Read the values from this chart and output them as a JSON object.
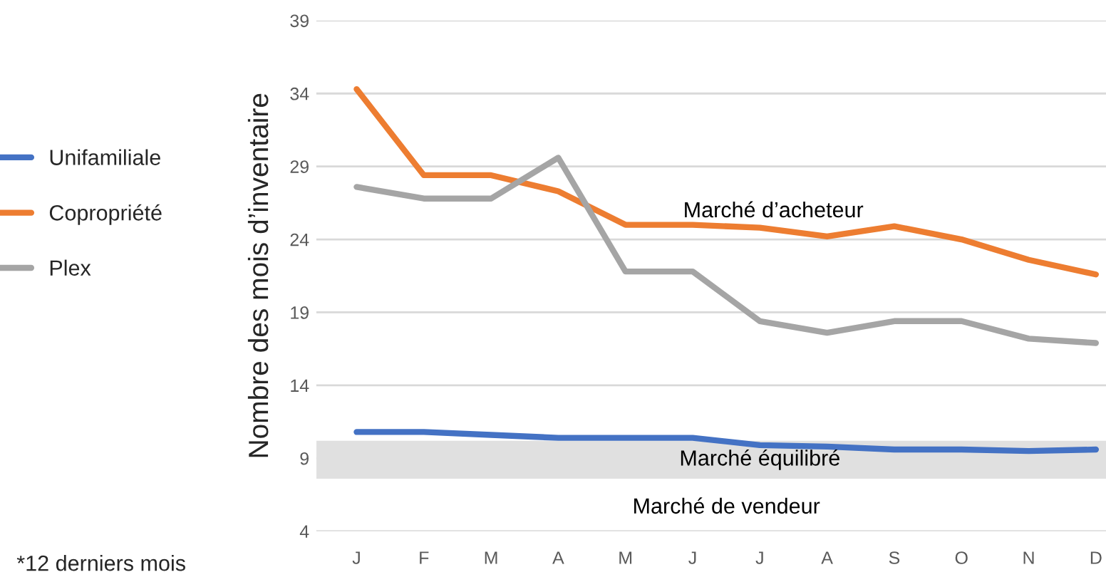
{
  "chart_data": {
    "type": "line",
    "ylabel": "Nombre des mois d’inventaire",
    "categories": [
      "J",
      "F",
      "M",
      "A",
      "M",
      "J",
      "J",
      "A",
      "S",
      "O",
      "N",
      "D"
    ],
    "series": [
      {
        "name": "Unifamiliale",
        "color": "#4472c4",
        "values": [
          10.8,
          10.8,
          10.6,
          10.4,
          10.4,
          10.4,
          9.9,
          9.8,
          9.6,
          9.6,
          9.5,
          9.6
        ]
      },
      {
        "name": "Copropriété",
        "color": "#ed7d31",
        "values": [
          34.3,
          28.4,
          28.4,
          27.3,
          25.0,
          25.0,
          24.8,
          24.2,
          24.9,
          24.0,
          22.6,
          21.6
        ]
      },
      {
        "name": "Plex",
        "color": "#a5a5a5",
        "values": [
          27.6,
          26.8,
          26.8,
          29.6,
          21.8,
          21.8,
          18.4,
          17.6,
          18.4,
          18.4,
          17.2,
          16.9
        ]
      }
    ],
    "ylim": [
      4,
      39
    ],
    "yticks": [
      4,
      9,
      14,
      19,
      24,
      29,
      34,
      39
    ],
    "grid": "y",
    "legend": "left",
    "bands": [
      {
        "axis": "y",
        "from": 7.6,
        "to": 10.2,
        "label": "Marché équilibré",
        "color": "#e0e0e0"
      }
    ],
    "annotations": [
      "Marché d’acheteur",
      "Marché de vendeur",
      "*12 derniers mois"
    ]
  }
}
